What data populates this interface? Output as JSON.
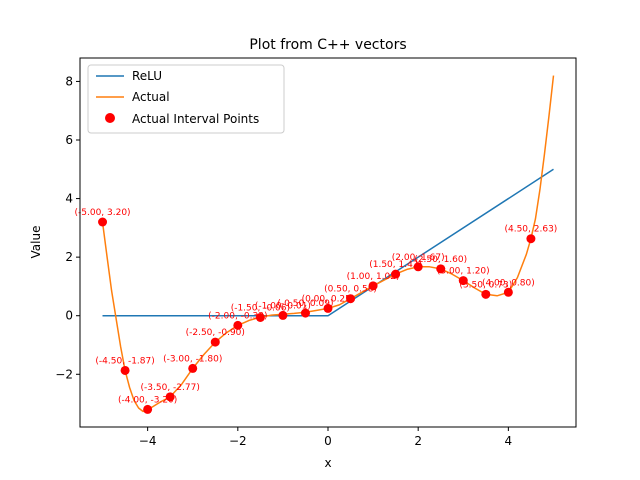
{
  "chart_data": {
    "type": "line",
    "title": "Plot from C++ vectors",
    "xlabel": "x",
    "ylabel": "Value",
    "xlim": [
      -5.5,
      5.5
    ],
    "ylim": [
      -3.8,
      8.8
    ],
    "xticks": [
      -4,
      -2,
      0,
      2,
      4
    ],
    "xtick_labels": [
      "−4",
      "−2",
      "0",
      "2",
      "4"
    ],
    "yticks": [
      -2,
      0,
      2,
      4,
      6,
      8
    ],
    "ytick_labels": [
      "−2",
      "0",
      "2",
      "4",
      "6",
      "8"
    ],
    "grid": false,
    "legend_position": "top-left",
    "series": [
      {
        "name": "ReLU",
        "kind": "line",
        "color": "#1f77b4",
        "x": [
          -5,
          0,
          5
        ],
        "y": [
          0,
          0,
          5
        ]
      },
      {
        "name": "Actual",
        "kind": "line",
        "color": "#ff7f0e",
        "x": [
          -5.0,
          -4.9,
          -4.8,
          -4.7,
          -4.6,
          -4.5,
          -4.4,
          -4.3,
          -4.2,
          -4.1,
          -4.0,
          -3.9,
          -3.8,
          -3.7,
          -3.6,
          -3.5,
          -3.25,
          -3.0,
          -2.75,
          -2.5,
          -2.25,
          -2.0,
          -1.75,
          -1.5,
          -1.25,
          -1.0,
          -0.75,
          -0.5,
          -0.25,
          0.0,
          0.25,
          0.5,
          0.75,
          1.0,
          1.25,
          1.5,
          1.75,
          2.0,
          2.25,
          2.5,
          2.75,
          3.0,
          3.25,
          3.5,
          3.75,
          4.0,
          4.2,
          4.4,
          4.5,
          4.6,
          4.7,
          4.8,
          4.9,
          5.0
        ],
        "y": [
          3.2,
          2.0,
          0.85,
          -0.1,
          -1.05,
          -1.87,
          -2.45,
          -2.9,
          -3.15,
          -3.27,
          -3.2,
          -3.12,
          -3.02,
          -2.93,
          -2.85,
          -2.77,
          -2.35,
          -1.8,
          -1.32,
          -0.9,
          -0.58,
          -0.33,
          -0.16,
          -0.05,
          0.02,
          0.05,
          0.08,
          0.12,
          0.18,
          0.25,
          0.37,
          0.58,
          0.8,
          1.02,
          1.22,
          1.42,
          1.58,
          1.67,
          1.67,
          1.6,
          1.42,
          1.2,
          0.95,
          0.73,
          0.68,
          0.8,
          1.3,
          2.1,
          2.63,
          3.3,
          4.3,
          5.5,
          6.8,
          8.2
        ]
      },
      {
        "name": "Actual Interval Points",
        "kind": "scatter",
        "color": "#ff0000",
        "x": [
          -5.0,
          -4.5,
          -4.0,
          -3.5,
          -3.0,
          -2.5,
          -2.0,
          -1.5,
          -1.0,
          -0.5,
          0.0,
          0.5,
          1.0,
          1.5,
          2.0,
          2.5,
          3.0,
          3.5,
          4.0,
          4.5
        ],
        "y": [
          3.2,
          -1.87,
          -3.2,
          -2.77,
          -1.8,
          -0.9,
          -0.33,
          -0.06,
          0.01,
          0.09,
          0.25,
          0.58,
          1.02,
          1.42,
          1.67,
          1.6,
          1.2,
          0.73,
          0.8,
          2.63
        ],
        "labels": [
          "(-5.00, 3.20)",
          "(-4.50, -1.87)",
          "(-4.00, -3.20)",
          "(-3.50, -2.77)",
          "(-3.00, -1.80)",
          "(-2.50, -0.90)",
          "(-2.00, -0.33)",
          "(-1.50, -0.06)",
          "(-1.00, 0.01)",
          "(-0.50, 0.09)",
          "(0.00, 0.25)",
          "(0.50, 0.58)",
          "(1.00, 1.02)",
          "(1.50, 1.42)",
          "(2.00, 1.67)",
          "(2.50, 1.60)",
          "(3.00, 1.20)",
          "(3.50, 0.73)",
          "(4.00, 0.80)",
          "(4.50, 2.63)"
        ]
      }
    ]
  }
}
